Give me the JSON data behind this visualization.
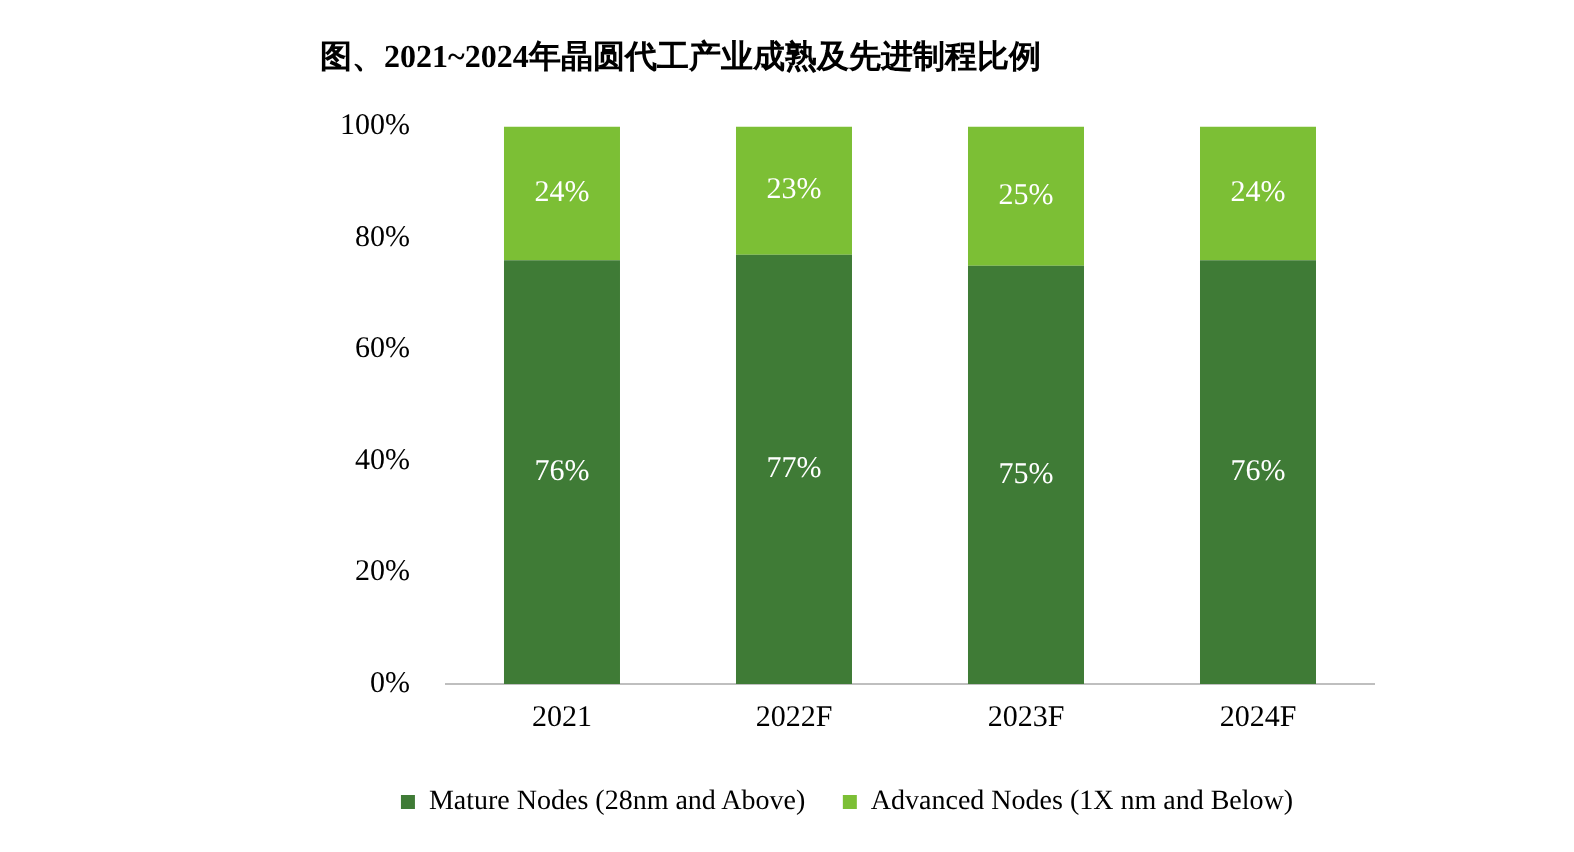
{
  "chart_data": {
    "type": "bar",
    "title": "图、2021~2024年晶圆代工产业成熟及先进制程比例",
    "categories": [
      "2021",
      "2022F",
      "2023F",
      "2024F"
    ],
    "stacked": true,
    "legend": "bottom",
    "ylim": [
      0,
      100
    ],
    "yticks": [
      {
        "value": 0,
        "label": "0%"
      },
      {
        "value": 20,
        "label": "20%"
      },
      {
        "value": 40,
        "label": "40%"
      },
      {
        "value": 60,
        "label": "60%"
      },
      {
        "value": 80,
        "label": "80%"
      },
      {
        "value": 100,
        "label": "100%"
      }
    ],
    "series": [
      {
        "name": "Mature Nodes (28nm and Above)",
        "color": "#3f7b36",
        "values": [
          76,
          77,
          75,
          76
        ],
        "value_labels": [
          "76%",
          "77%",
          "75%",
          "76%"
        ]
      },
      {
        "name": "Advanced Nodes (1X nm and Below)",
        "color": "#7cbf35",
        "values": [
          24,
          23,
          25,
          24
        ],
        "value_labels": [
          "24%",
          "23%",
          "25%",
          "24%"
        ]
      }
    ]
  }
}
